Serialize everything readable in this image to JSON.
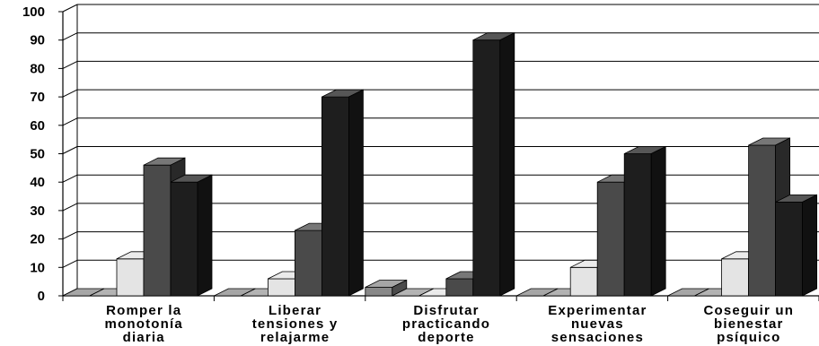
{
  "chart_data": {
    "type": "bar",
    "title": "",
    "xlabel": "",
    "ylabel": "",
    "ylim": [
      0,
      100
    ],
    "yticks": [
      "0",
      "10",
      "20",
      "30",
      "40",
      "50",
      "60",
      "70",
      "80",
      "90",
      "100"
    ],
    "grid": true,
    "legend": "none",
    "categories": [
      [
        "Romper la",
        "monotonía",
        "diaria"
      ],
      [
        "Liberar",
        "tensiones y",
        "relajarme"
      ],
      [
        "Disfrutar",
        "practicando",
        "deporte"
      ],
      [
        "Experimentar",
        "nuevas",
        "sensaciones"
      ],
      [
        "Coseguir un",
        "bienestar",
        "psíquico"
      ]
    ],
    "series": [
      {
        "values": [
          0,
          0,
          3,
          0,
          0
        ],
        "color": "#888888"
      },
      {
        "values": [
          0,
          0,
          0,
          0,
          0
        ],
        "color": "#9a9a9a"
      },
      {
        "values": [
          13,
          6,
          0,
          10,
          13
        ],
        "color": "#e4e4e4"
      },
      {
        "values": [
          46,
          23,
          6,
          40,
          53
        ],
        "color": "#4a4a4a"
      },
      {
        "values": [
          40,
          70,
          90,
          50,
          33
        ],
        "color": "#1e1e1e"
      }
    ]
  }
}
